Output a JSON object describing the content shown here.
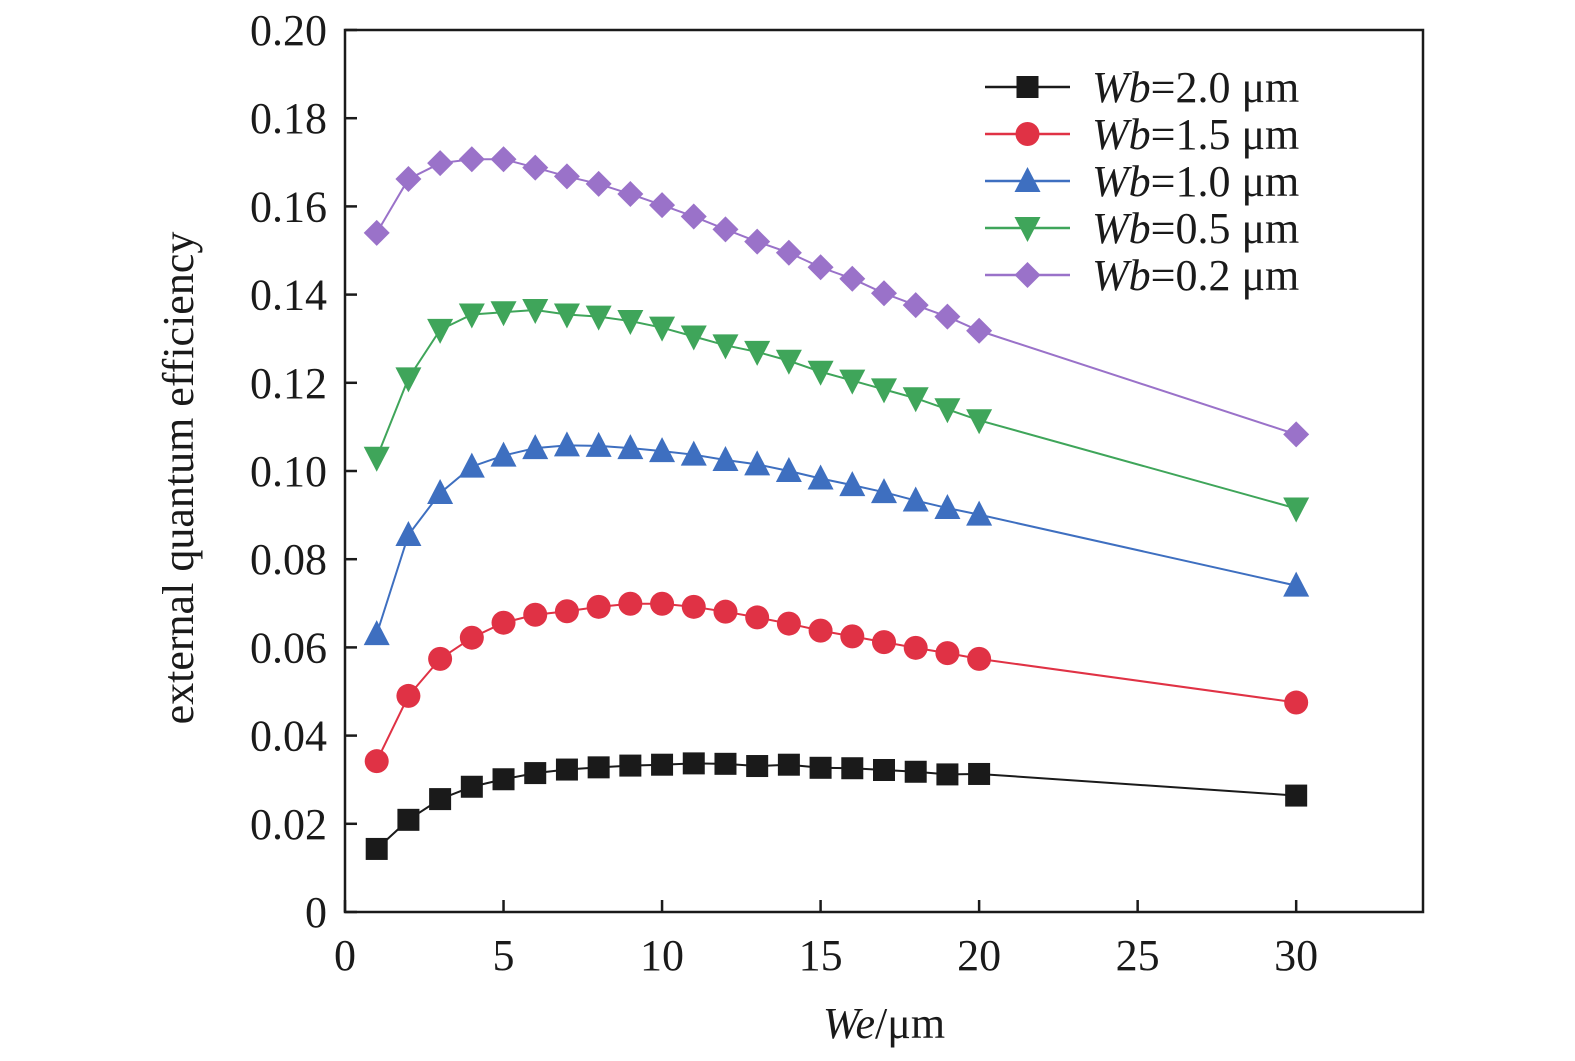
{
  "chart_data": {
    "type": "line",
    "title": "",
    "xlabel": {
      "italic": "We",
      "rest": "/μm"
    },
    "ylabel": "external quantum efficiency",
    "xlim": [
      0,
      34
    ],
    "ylim": [
      0,
      0.2
    ],
    "xticks": [
      0,
      5,
      10,
      15,
      20,
      25,
      30
    ],
    "xtick_labels": [
      "0",
      "5",
      "10",
      "15",
      "20",
      "25",
      "30"
    ],
    "yticks": [
      0,
      0.02,
      0.04,
      0.06,
      0.08,
      0.1,
      0.12,
      0.14,
      0.16,
      0.18,
      0.2
    ],
    "ytick_labels": [
      "0",
      "0.02",
      "0.04",
      "0.06",
      "0.08",
      "0.10",
      "0.12",
      "0.14",
      "0.16",
      "0.18",
      "0.20"
    ],
    "grid": false,
    "legend_position": "top-right",
    "x": [
      1,
      2,
      3,
      4,
      5,
      6,
      7,
      8,
      9,
      10,
      11,
      12,
      13,
      14,
      15,
      16,
      17,
      18,
      19,
      20,
      30
    ],
    "series": [
      {
        "name_italic": "Wb",
        "name_rest": "=2.0 μm",
        "color": "#1a1a1a",
        "marker": "square",
        "values": [
          0.0143,
          0.0209,
          0.0256,
          0.0284,
          0.0301,
          0.0315,
          0.0323,
          0.0328,
          0.0332,
          0.0334,
          0.0337,
          0.0336,
          0.0331,
          0.0334,
          0.0327,
          0.0326,
          0.0322,
          0.0318,
          0.0312,
          0.0313,
          0.0264
        ]
      },
      {
        "name_italic": "Wb",
        "name_rest": "=1.5 μm",
        "color": "#e03245",
        "marker": "circle",
        "values": [
          0.0342,
          0.049,
          0.0574,
          0.0622,
          0.0656,
          0.0674,
          0.0682,
          0.0692,
          0.0699,
          0.0699,
          0.0692,
          0.0681,
          0.0668,
          0.0654,
          0.0638,
          0.0625,
          0.0612,
          0.0599,
          0.0587,
          0.0574,
          0.0475
        ]
      },
      {
        "name_italic": "Wb",
        "name_rest": "=1.0 μm",
        "color": "#3e6fc0",
        "marker": "triangle-up",
        "values": [
          0.063,
          0.0855,
          0.095,
          0.101,
          0.1035,
          0.1052,
          0.1058,
          0.1057,
          0.1052,
          0.1045,
          0.1037,
          0.1025,
          0.1015,
          0.1,
          0.0983,
          0.0968,
          0.0952,
          0.0933,
          0.0916,
          0.0901,
          0.074
        ]
      },
      {
        "name_italic": "Wb",
        "name_rest": "=0.5 μm",
        "color": "#3fa55a",
        "marker": "triangle-down",
        "values": [
          0.103,
          0.121,
          0.132,
          0.1355,
          0.136,
          0.1365,
          0.1355,
          0.135,
          0.134,
          0.1325,
          0.1305,
          0.1285,
          0.127,
          0.125,
          0.1225,
          0.1205,
          0.1185,
          0.1165,
          0.114,
          0.1115,
          0.0915
        ]
      },
      {
        "name_italic": "Wb",
        "name_rest": "=0.2 μm",
        "color": "#9a72c9",
        "marker": "diamond",
        "values": [
          0.154,
          0.1662,
          0.1698,
          0.1707,
          0.1707,
          0.1688,
          0.1668,
          0.1651,
          0.1628,
          0.1603,
          0.1577,
          0.1548,
          0.152,
          0.1495,
          0.1462,
          0.1436,
          0.1403,
          0.1376,
          0.135,
          0.1318,
          0.1083
        ]
      }
    ]
  }
}
